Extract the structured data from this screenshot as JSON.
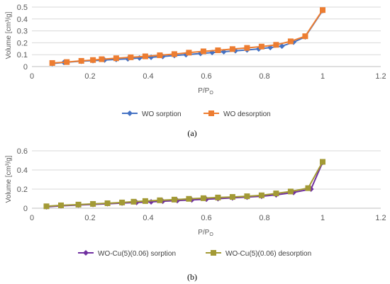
{
  "chart_data": [
    {
      "type": "line",
      "panel_label": "(a)",
      "xlabel": "P/P",
      "xlabel_sub": "O",
      "ylabel": "Volume [cm³/g]",
      "xlim": [
        0,
        1.2
      ],
      "ylim": [
        0,
        0.5
      ],
      "x_ticks": [
        "0",
        "0.2",
        "0.4",
        "0.6",
        "0.8",
        "1",
        "1.2"
      ],
      "y_ticks": [
        "0",
        "0.1",
        "0.2",
        "0.3",
        "0.4",
        "0.5"
      ],
      "grid": true,
      "legend_position": "bottom",
      "series": [
        {
          "name": "WO sorption",
          "color": "#4472c4",
          "marker": "diamond",
          "points": [
            [
              0.07,
              0.025
            ],
            [
              0.11,
              0.035
            ],
            [
              0.17,
              0.045
            ],
            [
              0.21,
              0.05
            ],
            [
              0.25,
              0.055
            ],
            [
              0.29,
              0.06
            ],
            [
              0.33,
              0.065
            ],
            [
              0.37,
              0.072
            ],
            [
              0.41,
              0.078
            ],
            [
              0.45,
              0.085
            ],
            [
              0.49,
              0.093
            ],
            [
              0.53,
              0.1
            ],
            [
              0.58,
              0.11
            ],
            [
              0.62,
              0.118
            ],
            [
              0.66,
              0.125
            ],
            [
              0.7,
              0.133
            ],
            [
              0.74,
              0.14
            ],
            [
              0.78,
              0.148
            ],
            [
              0.82,
              0.16
            ],
            [
              0.86,
              0.172
            ],
            [
              0.9,
              0.205
            ],
            [
              0.94,
              0.25
            ],
            [
              1.0,
              0.47
            ]
          ]
        },
        {
          "name": "WO desorption",
          "color": "#ed7d31",
          "marker": "square",
          "points": [
            [
              0.07,
              0.03
            ],
            [
              0.12,
              0.038
            ],
            [
              0.17,
              0.048
            ],
            [
              0.21,
              0.055
            ],
            [
              0.24,
              0.062
            ],
            [
              0.29,
              0.07
            ],
            [
              0.34,
              0.078
            ],
            [
              0.39,
              0.086
            ],
            [
              0.44,
              0.095
            ],
            [
              0.49,
              0.105
            ],
            [
              0.54,
              0.117
            ],
            [
              0.59,
              0.128
            ],
            [
              0.64,
              0.137
            ],
            [
              0.69,
              0.147
            ],
            [
              0.74,
              0.157
            ],
            [
              0.79,
              0.168
            ],
            [
              0.84,
              0.183
            ],
            [
              0.89,
              0.212
            ],
            [
              0.94,
              0.255
            ],
            [
              1.0,
              0.475
            ]
          ]
        }
      ]
    },
    {
      "type": "line",
      "panel_label": "(b)",
      "xlabel": "P/P",
      "xlabel_sub": "O",
      "ylabel": "Volume [cm³/g]",
      "xlim": [
        0,
        1.2
      ],
      "ylim": [
        0,
        0.6
      ],
      "x_ticks": [
        "0",
        "0.2",
        "0.4",
        "0.6",
        "0.8",
        "1",
        "1.2"
      ],
      "y_ticks": [
        "0",
        "0.2",
        "0.4",
        "0.6"
      ],
      "grid": true,
      "legend_position": "bottom",
      "series": [
        {
          "name": "WO-Cu(5)(0.06) sorption",
          "color": "#7030a0",
          "marker": "diamond",
          "points": [
            [
              0.05,
              0.015
            ],
            [
              0.1,
              0.025
            ],
            [
              0.16,
              0.033
            ],
            [
              0.21,
              0.04
            ],
            [
              0.26,
              0.047
            ],
            [
              0.31,
              0.054
            ],
            [
              0.36,
              0.06
            ],
            [
              0.41,
              0.067
            ],
            [
              0.45,
              0.073
            ],
            [
              0.5,
              0.08
            ],
            [
              0.55,
              0.087
            ],
            [
              0.6,
              0.094
            ],
            [
              0.64,
              0.1
            ],
            [
              0.69,
              0.108
            ],
            [
              0.74,
              0.116
            ],
            [
              0.79,
              0.125
            ],
            [
              0.84,
              0.14
            ],
            [
              0.9,
              0.165
            ],
            [
              0.96,
              0.2
            ],
            [
              1.0,
              0.48
            ]
          ]
        },
        {
          "name": "WO-Cu(5)(0.06) desorption",
          "color": "#a39a35",
          "marker": "square",
          "points": [
            [
              0.05,
              0.02
            ],
            [
              0.1,
              0.03
            ],
            [
              0.16,
              0.038
            ],
            [
              0.21,
              0.045
            ],
            [
              0.26,
              0.052
            ],
            [
              0.31,
              0.06
            ],
            [
              0.35,
              0.068
            ],
            [
              0.39,
              0.075
            ],
            [
              0.44,
              0.083
            ],
            [
              0.49,
              0.09
            ],
            [
              0.54,
              0.098
            ],
            [
              0.59,
              0.105
            ],
            [
              0.64,
              0.112
            ],
            [
              0.69,
              0.118
            ],
            [
              0.74,
              0.125
            ],
            [
              0.79,
              0.135
            ],
            [
              0.84,
              0.155
            ],
            [
              0.89,
              0.175
            ],
            [
              0.95,
              0.21
            ],
            [
              1.0,
              0.485
            ]
          ]
        }
      ]
    }
  ]
}
